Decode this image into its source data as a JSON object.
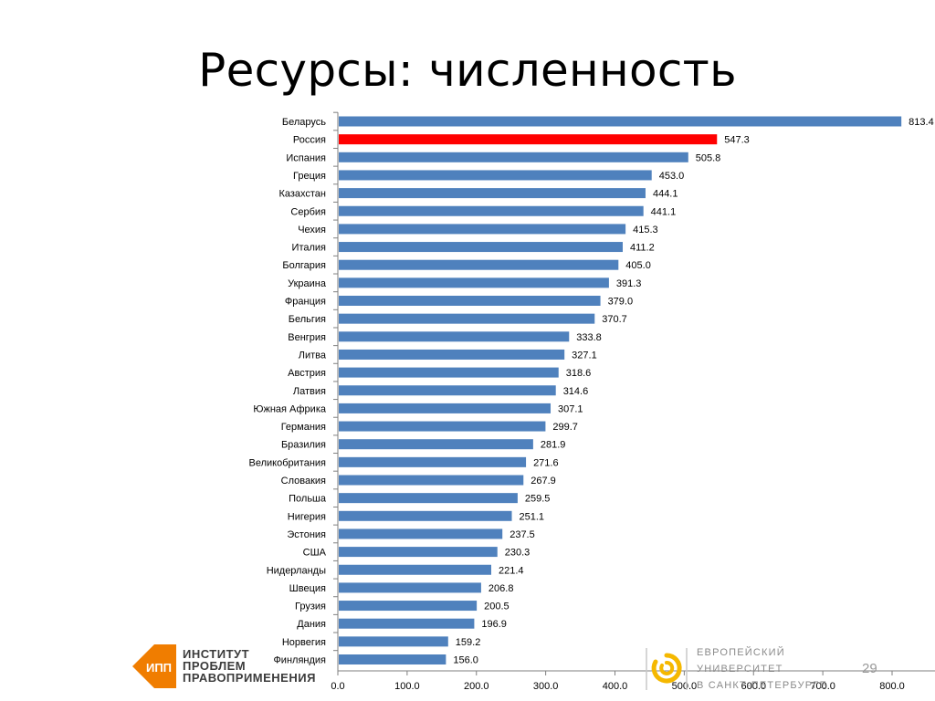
{
  "title": "Ресурсы: численность",
  "page_number": "29",
  "logos": {
    "left": {
      "badge": "ИПП",
      "lines": [
        "ИНСТИТУТ",
        "ПРОБЛЕМ",
        "ПРАВОПРИМЕНЕНИЯ"
      ]
    },
    "right": {
      "lines": [
        "ЕВРОПЕЙСКИЙ",
        "УНИВЕРСИТЕТ",
        "В САНКТ-ПЕТЕРБУРГЕ"
      ]
    }
  },
  "colors": {
    "bar": "#4f81bd",
    "highlight": "#ff0000",
    "axis": "#7f7f7f"
  },
  "chart_data": {
    "type": "bar",
    "orientation": "horizontal",
    "categories": [
      "Беларусь",
      "Россия",
      "Испания",
      "Греция",
      "Казахстан",
      "Сербия",
      "Чехия",
      "Италия",
      "Болгария",
      "Украина",
      "Франция",
      "Бельгия",
      "Венгрия",
      "Литва",
      "Австрия",
      "Латвия",
      "Южная Африка",
      "Германия",
      "Бразилия",
      "Великобритания",
      "Словакия",
      "Польша",
      "Нигерия",
      "Эстония",
      "США",
      "Нидерланды",
      "Швеция",
      "Грузия",
      "Дания",
      "Норвегия",
      "Финляндия"
    ],
    "values": [
      813.4,
      547.3,
      505.8,
      453.0,
      444.1,
      441.1,
      415.3,
      411.2,
      405.0,
      391.3,
      379.0,
      370.7,
      333.8,
      327.1,
      318.6,
      314.6,
      307.1,
      299.7,
      281.9,
      271.6,
      267.9,
      259.5,
      251.1,
      237.5,
      230.3,
      221.4,
      206.8,
      200.5,
      196.9,
      159.2,
      156.0
    ],
    "value_labels": [
      "813.4",
      "547.3",
      "505.8",
      "453.0",
      "444.1",
      "441.1",
      "415.3",
      "411.2",
      "405.0",
      "391.3",
      "379.0",
      "370.7",
      "333.8",
      "327.1",
      "318.6",
      "314.6",
      "307.1",
      "299.7",
      "281.9",
      "271.6",
      "267.9",
      "259.5",
      "251.1",
      "237.5",
      "230.3",
      "221.4",
      "206.8",
      "200.5",
      "196.9",
      "159.2",
      "156.0"
    ],
    "highlight_category": "Россия",
    "xlim": [
      0,
      800
    ],
    "x_ticks": [
      0,
      100,
      200,
      300,
      400,
      500,
      600,
      700,
      800
    ],
    "x_tick_labels": [
      "0.0",
      "100.0",
      "200.0",
      "300.0",
      "400.0",
      "500.0",
      "600.0",
      "700.0",
      "800.0"
    ],
    "grid": false,
    "legend": "none"
  }
}
